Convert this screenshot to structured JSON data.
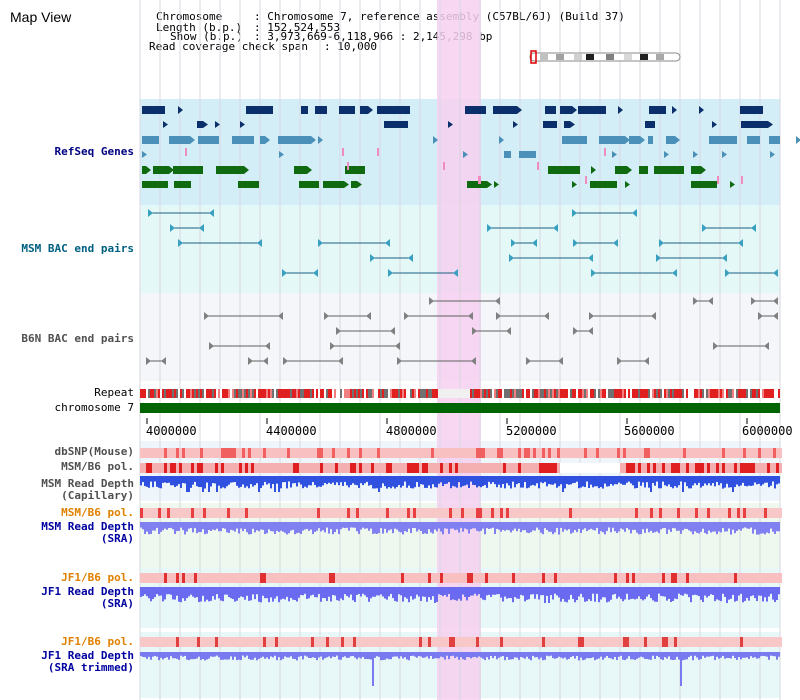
{
  "app": {
    "title": "Map View"
  },
  "info": {
    "chromosome_key": "Chromosome",
    "chromosome_val": ": Chromosome 7, reference assembly (C57BL/6J) (Build 37)",
    "length_key": "Length (b.p.)",
    "length_val": ": 152,524,553",
    "show_key": "Show (b.p.)",
    "show_val": ": 3,973,669-6,118,966 : 2,145,298 bp",
    "span_key": "Read coverage check span",
    "span_val": ": 10,000"
  },
  "tracks": {
    "refseq": "RefSeq Genes",
    "msm_bac": "MSM BAC end pairs",
    "b6n_bac": "B6N BAC end pairs",
    "repeat": "Repeat",
    "chromosome": "chromosome 7",
    "dbsnp": "dbSNP(Mouse)",
    "msm_pol1": "MSM/B6 pol.",
    "msm_depth_cap_1": "MSM Read Depth",
    "msm_depth_cap_2": "(Capillary)",
    "msm_pol2": "MSM/B6 pol.",
    "msm_depth_sra_1": "MSM Read Depth",
    "msm_depth_sra_2": "(SRA)",
    "jf1_pol1": "JF1/B6 pol.",
    "jf1_depth_sra_1": "JF1 Read Depth",
    "jf1_depth_sra_2": "(SRA)",
    "jf1_pol2": "JF1/B6 pol.",
    "jf1_depth_trim_1": "JF1 Read Depth",
    "jf1_depth_trim_2": "(SRA trimmed)"
  },
  "axis": {
    "ticks": [
      "4000000",
      "4400000",
      "4800000",
      "5200000",
      "5600000",
      "6000000"
    ]
  },
  "colors": {
    "refseq_bg": "#d4eef8",
    "msm_bg": "#e4f8f8",
    "b6n_bg": "#f4f6fa",
    "highlight": "#f6d0f0",
    "chromosome_bar": "#006400",
    "label_navy": "#000080",
    "label_teal": "#006080",
    "label_gray": "#505050",
    "label_orange": "#e08000",
    "label_blue": "#0000a0"
  }
}
